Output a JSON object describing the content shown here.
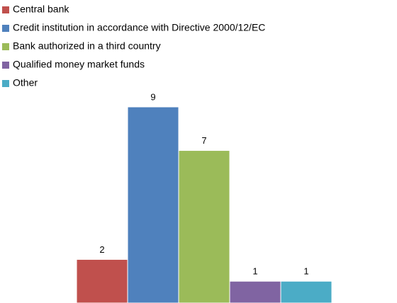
{
  "chart_data": {
    "type": "bar",
    "series": [
      {
        "name": "Central bank",
        "color": "#c0504d",
        "values": [
          2
        ]
      },
      {
        "name": "Credit institution in accordance with Directive 2000/12/EC",
        "color": "#4f81bd",
        "values": [
          9
        ]
      },
      {
        "name": "Bank authorized in a third country",
        "color": "#9bbb59",
        "values": [
          7
        ]
      },
      {
        "name": "Qualified money market funds",
        "color": "#8064a2",
        "values": [
          1
        ]
      },
      {
        "name": "Other",
        "color": "#4bacc6",
        "values": [
          1
        ]
      }
    ],
    "legend": "top-left"
  }
}
